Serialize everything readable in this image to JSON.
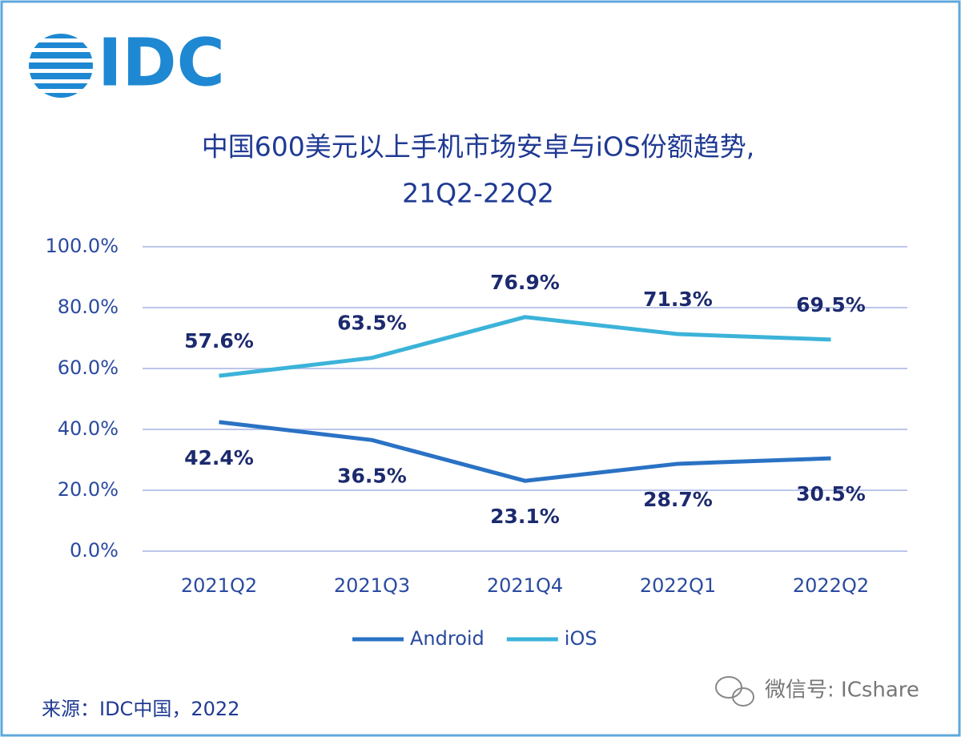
{
  "logo": "IDC",
  "chart_data": {
    "type": "line",
    "title": "中国600美元以上手机市场安卓与iOS份额趋势,",
    "subtitle": "21Q2-22Q2",
    "categories": [
      "2021Q2",
      "2021Q3",
      "2021Q4",
      "2022Q1",
      "2022Q2"
    ],
    "series": [
      {
        "name": "Android",
        "color": "#2a72c4",
        "values": [
          42.4,
          36.5,
          23.1,
          28.7,
          30.5
        ],
        "value_labels": [
          "42.4%",
          "36.5%",
          "23.1%",
          "28.7%",
          "30.5%"
        ]
      },
      {
        "name": "iOS",
        "color": "#3cb3d9",
        "values": [
          57.6,
          63.5,
          76.9,
          71.3,
          69.5
        ],
        "value_labels": [
          "57.6%",
          "63.5%",
          "76.9%",
          "71.3%",
          "69.5%"
        ]
      }
    ],
    "ylim": [
      0,
      100
    ],
    "yticks": [
      {
        "value": 0,
        "label": "0.0%"
      },
      {
        "value": 20,
        "label": "20.0%"
      },
      {
        "value": 40,
        "label": "40.0%"
      },
      {
        "value": 60,
        "label": "60.0%"
      },
      {
        "value": 80,
        "label": "80.0%"
      },
      {
        "value": 100,
        "label": "100.0%"
      }
    ],
    "grid": true,
    "legend": "bottom"
  },
  "source": "来源：IDC中国，2022",
  "watermark": "微信号: ICshare"
}
